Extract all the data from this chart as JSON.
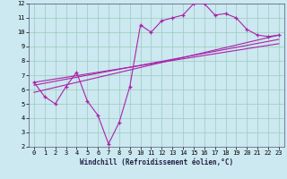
{
  "xlabel": "Windchill (Refroidissement éolien,°C)",
  "bg_color": "#cce8f0",
  "line_color": "#aa22aa",
  "grid_color": "#99ccbb",
  "xmin": -0.5,
  "xmax": 23.5,
  "ymin": 2,
  "ymax": 12,
  "series1_x": [
    0,
    1,
    2,
    3,
    4,
    5,
    6,
    7,
    8,
    9,
    10,
    11,
    12,
    13,
    14,
    15,
    16,
    17,
    18,
    19,
    20,
    21,
    22,
    23
  ],
  "series1_y": [
    6.5,
    5.5,
    5.0,
    6.2,
    7.2,
    5.2,
    4.2,
    2.2,
    3.7,
    6.2,
    10.5,
    10.0,
    10.8,
    11.0,
    11.2,
    12.0,
    12.0,
    11.2,
    11.3,
    11.0,
    10.2,
    9.8,
    9.7,
    9.8
  ],
  "trend_line1": [
    0,
    23,
    5.8,
    9.8
  ],
  "trend_line2": [
    0,
    23,
    6.3,
    9.5
  ],
  "trend_line3": [
    0,
    23,
    6.5,
    9.2
  ],
  "xticks": [
    0,
    1,
    2,
    3,
    4,
    5,
    6,
    7,
    8,
    9,
    10,
    11,
    12,
    13,
    14,
    15,
    16,
    17,
    18,
    19,
    20,
    21,
    22,
    23
  ],
  "yticks": [
    2,
    3,
    4,
    5,
    6,
    7,
    8,
    9,
    10,
    11,
    12
  ],
  "xlabel_fontsize": 5.5,
  "tick_fontsize": 5
}
